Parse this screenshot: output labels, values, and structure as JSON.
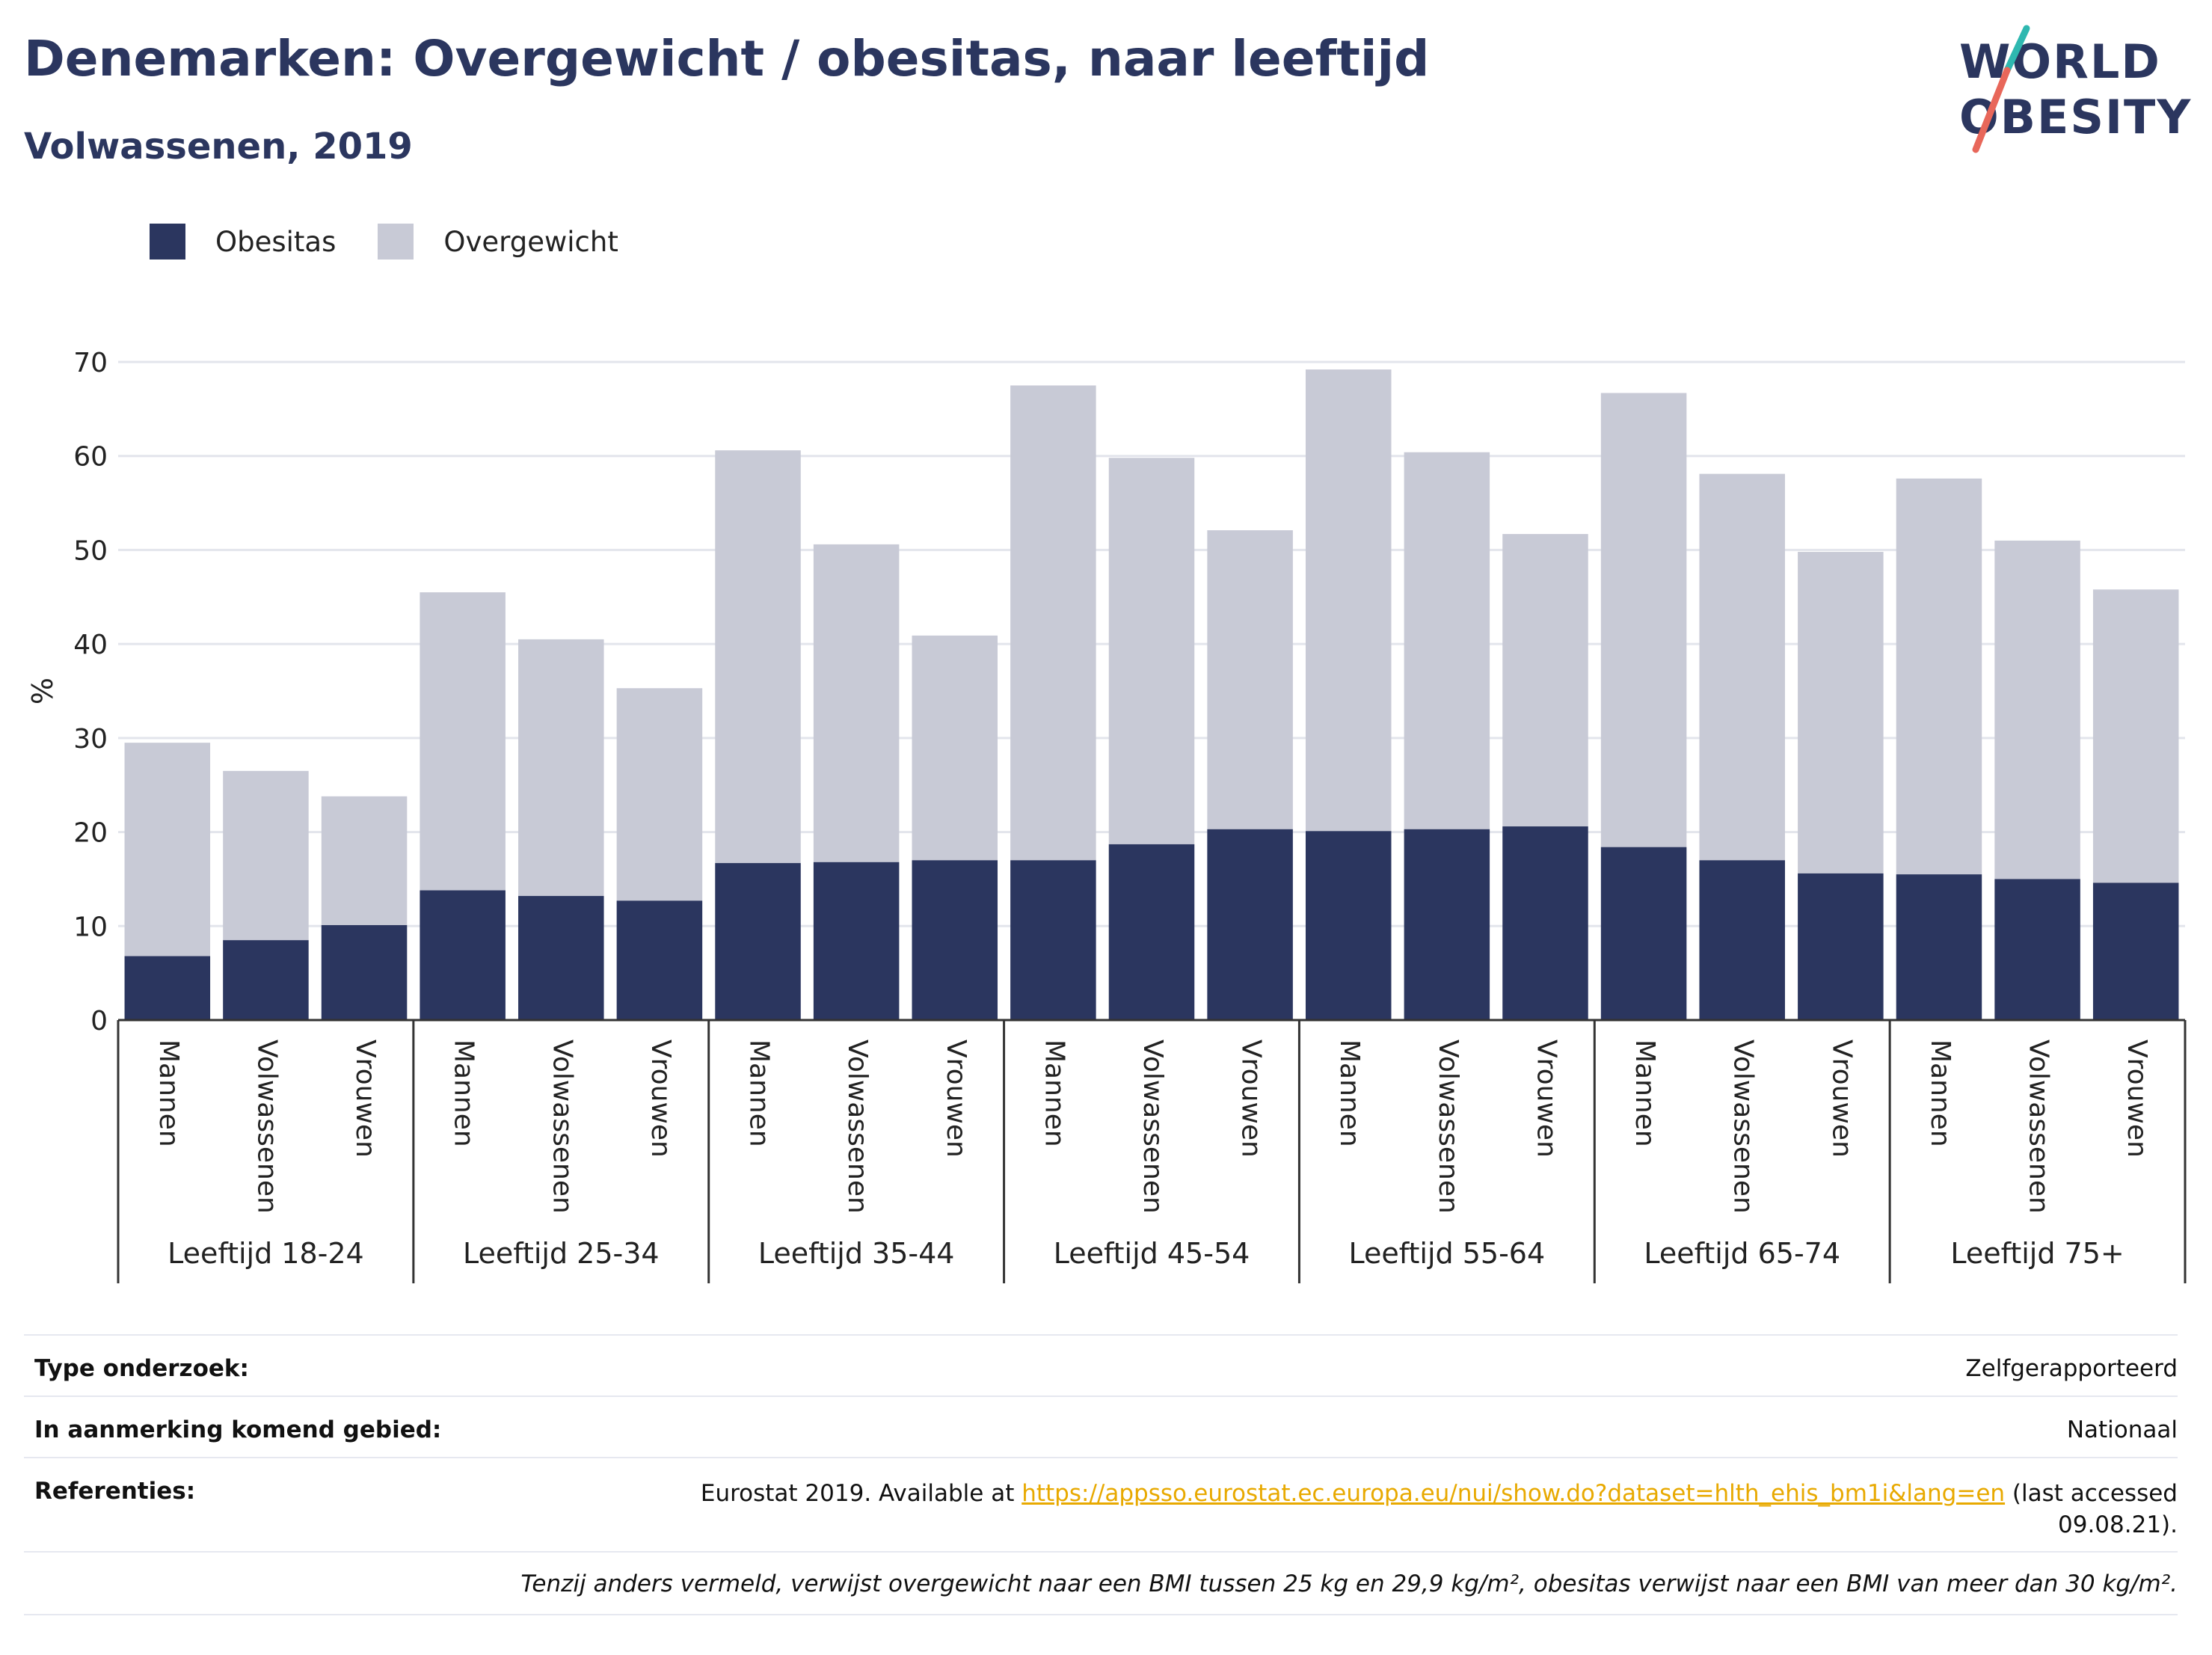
{
  "header": {
    "title": "Denemarken: Overgewicht / obesitas, naar leeftijd",
    "subtitle": "Volwassenen, 2019"
  },
  "logo": {
    "line1": "WORLD",
    "line2": "OBESITY",
    "accent_teal": "#2fb8b0",
    "accent_coral": "#e8675a"
  },
  "legend": [
    {
      "label": "Obesitas",
      "color": "#2b365f"
    },
    {
      "label": "Overgewicht",
      "color": "#c8cad6"
    }
  ],
  "chart_data": {
    "type": "bar",
    "stacked": true,
    "ylabel": "%",
    "ylim": [
      0,
      70
    ],
    "yticks": [
      0,
      10,
      20,
      30,
      40,
      50,
      60,
      70
    ],
    "grid": true,
    "legend_position": "top-left",
    "groups": [
      "Leeftijd 18-24",
      "Leeftijd 25-34",
      "Leeftijd 35-44",
      "Leeftijd 45-54",
      "Leeftijd 55-64",
      "Leeftijd 65-74",
      "Leeftijd 75+"
    ],
    "subcategories": [
      "Mannen",
      "Volwassenen",
      "Vrouwen"
    ],
    "series": [
      {
        "name": "Obesitas",
        "color": "#2b365f",
        "values": [
          [
            6.8,
            8.5,
            10.1
          ],
          [
            13.8,
            13.2,
            12.7
          ],
          [
            16.7,
            16.8,
            17.0
          ],
          [
            17.0,
            18.7,
            20.3
          ],
          [
            20.1,
            20.3,
            20.6
          ],
          [
            18.4,
            17.0,
            15.6
          ],
          [
            15.5,
            15.0,
            14.6
          ]
        ]
      },
      {
        "name": "Overgewicht",
        "color": "#c8cad6",
        "values": [
          [
            22.7,
            18.0,
            13.7
          ],
          [
            31.7,
            27.3,
            22.6
          ],
          [
            43.9,
            33.8,
            23.9
          ],
          [
            50.5,
            41.1,
            31.8
          ],
          [
            49.1,
            40.1,
            31.1
          ],
          [
            48.3,
            41.1,
            34.2
          ],
          [
            42.1,
            36.0,
            31.2
          ]
        ]
      }
    ]
  },
  "meta": {
    "type_label": "Type onderzoek:",
    "type_value": "Zelfgerapporteerd",
    "area_label": "In aanmerking komend gebied:",
    "area_value": "Nationaal",
    "ref_label": "Referenties:",
    "ref_prefix": "Eurostat 2019. Available at ",
    "ref_link": "https://appsso.eurostat.ec.europa.eu/nui/show.do?dataset=hlth_ehis_bm1i&lang=en",
    "ref_suffix": " (last accessed",
    "ref_date": "09.08.21).",
    "note": "Tenzij anders vermeld, verwijst overgewicht naar een BMI tussen 25 kg en 29,9 kg/m², obesitas verwijst naar een BMI van meer dan 30 kg/m²."
  }
}
